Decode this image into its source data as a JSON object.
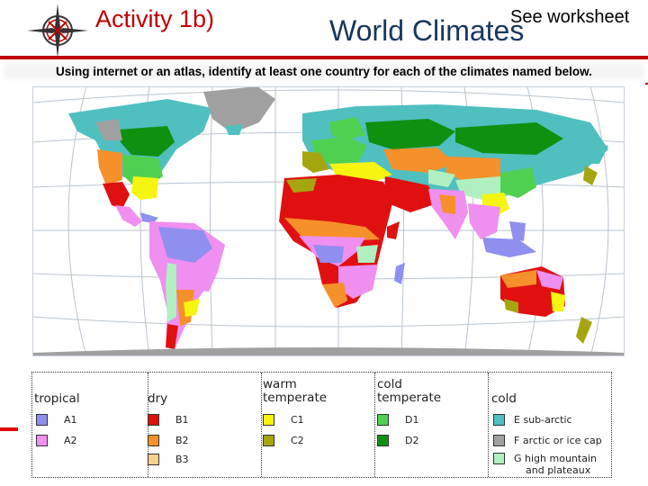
{
  "header": {
    "activity_label": "Activity 1b)",
    "title": "World Climates",
    "note": "See worksheet"
  },
  "instruction": "Using internet or an atlas, identify at least one country for each of the climates named below.",
  "legend": {
    "groups": [
      {
        "heading": "tropical",
        "items": [
          {
            "code": "A1",
            "color": "#8f8fef"
          },
          {
            "code": "A2",
            "color": "#ef8fef"
          }
        ]
      },
      {
        "heading": "dry",
        "items": [
          {
            "code": "B1",
            "color": "#e01010"
          },
          {
            "code": "B2",
            "color": "#f5902a"
          },
          {
            "code": "B3",
            "color": "#f7cf8f"
          }
        ]
      },
      {
        "heading_lines": [
          "warm",
          "temperate"
        ],
        "items": [
          {
            "code": "C1",
            "color": "#f5f510"
          },
          {
            "code": "C2",
            "color": "#a5a510"
          }
        ]
      },
      {
        "heading_lines": [
          "cold",
          "temperate"
        ],
        "items": [
          {
            "code": "D1",
            "color": "#50d050"
          },
          {
            "code": "D2",
            "color": "#109010"
          }
        ]
      },
      {
        "heading": "cold",
        "items": [
          {
            "code": "E sub-arctic",
            "color": "#50bfc0"
          },
          {
            "code": "F arctic or ice cap",
            "color": "#a0a0a0"
          },
          {
            "code": "G high mountain",
            "code_line2": "and plateaux",
            "color": "#b0f0c0"
          }
        ]
      }
    ]
  },
  "map_colors": {
    "ocean": "#ffffff",
    "grid": "#b8c4d0",
    "ice": "#a0a0a0"
  }
}
